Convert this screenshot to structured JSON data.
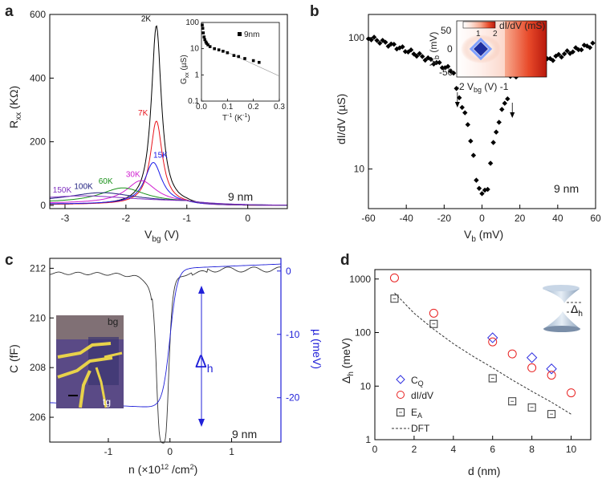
{
  "chart_data": [
    {
      "panel_label": "a",
      "type": "line",
      "xlabel": "V",
      "xlabel_sub": "bg",
      "xlabel_unit": " (V)",
      "ylabel": "R",
      "ylabel_sub": "xx",
      "ylabel_unit": " (KΩ)",
      "xlim": [
        -3.25,
        0.65
      ],
      "ylim": [
        -10,
        600
      ],
      "xticks": [
        -3,
        -2,
        -1,
        0
      ],
      "yticks": [
        0,
        200,
        400,
        600
      ],
      "annotation": "9 nm",
      "series": [
        {
          "name": "2K",
          "color": "#000000",
          "peak_x": -1.5,
          "peak_y": 565,
          "width": 0.1,
          "base": 2
        },
        {
          "name": "7K",
          "color": "#e8141c",
          "peak_x": -1.5,
          "peak_y": 265,
          "width": 0.12,
          "base": 3
        },
        {
          "name": "15K",
          "color": "#1a1ae8",
          "peak_x": -1.55,
          "peak_y": 135,
          "width": 0.17,
          "base": 4
        },
        {
          "name": "30K",
          "color": "#d020d0",
          "peak_x": -1.75,
          "peak_y": 78,
          "width": 0.3,
          "base": 6
        },
        {
          "name": "60K",
          "color": "#189018",
          "peak_x": -2.05,
          "peak_y": 55,
          "width": 0.45,
          "base": 8
        },
        {
          "name": "100K",
          "color": "#202080",
          "peak_x": -2.4,
          "peak_y": 40,
          "width": 0.7,
          "base": 9
        },
        {
          "name": "150K",
          "color": "#8030c0",
          "peak_x": -2.7,
          "peak_y": 30,
          "width": 1.0,
          "base": 10
        }
      ],
      "inset": {
        "xlabel": "T",
        "xlabel_sup": "-1",
        "xlabel_unit": " (K",
        "xlabel_unit_sup": "-1",
        "xlabel_close": ")",
        "ylabel": "G",
        "ylabel_sub": "xx",
        "ylabel_unit": " (µS)",
        "xlim": [
          0,
          0.3
        ],
        "ylog": [
          0.1,
          100
        ],
        "xticks": [
          0.0,
          0.1,
          0.2,
          0.3
        ],
        "yticks": [
          0.1,
          1,
          10,
          100
        ],
        "legend": "9nm",
        "x": [
          0.003,
          0.005,
          0.007,
          0.01,
          0.013,
          0.017,
          0.02,
          0.025,
          0.033,
          0.05,
          0.067,
          0.083,
          0.1,
          0.125,
          0.143,
          0.167,
          0.2,
          0.222
        ],
        "y": [
          80,
          60,
          40,
          28,
          22,
          18,
          16,
          14,
          12,
          10,
          9,
          8,
          7,
          5.5,
          5,
          4.2,
          3.5,
          3.0
        ]
      }
    },
    {
      "panel_label": "b",
      "type": "scatter",
      "xlabel": "V",
      "xlabel_sub": "b",
      "xlabel_unit": " (mV)",
      "ylabel": "dI/dV (µS)",
      "xlim": [
        -60,
        60
      ],
      "ylog": [
        5,
        150
      ],
      "xticks": [
        -60,
        -40,
        -20,
        0,
        20,
        40,
        60
      ],
      "yticks": [
        10,
        100
      ],
      "annotation": "9 nm",
      "arrows_x": [
        -13,
        16
      ],
      "inset": {
        "colorbar_label": "dI/dV (mS)",
        "colorbar_ticks": [
          "1",
          "2"
        ],
        "xlabel": "-2 V",
        "xlabel_sub": "bg",
        "xlabel_unit": " (V) -1",
        "ylabel": "V",
        "ylabel_sub": "b",
        "ylabel_unit": " (mV)",
        "yticks": [
          "50",
          "0",
          "-50"
        ]
      }
    },
    {
      "panel_label": "c",
      "type": "line",
      "xlabel": "n (×10",
      "xlabel_sup": "12",
      "xlabel_unit": " /cm",
      "xlabel_unit_sup": "2",
      "xlabel_close": ")",
      "ylabel": "C (fF)",
      "ylabel_right": "µ (meV)",
      "xlim": [
        -1.95,
        1.8
      ],
      "ylim": [
        205,
        212.4
      ],
      "y2lim": [
        -27,
        2
      ],
      "xticks": [
        -1,
        0,
        1
      ],
      "yticks": [
        206,
        208,
        210,
        212
      ],
      "y2ticks": [
        -20,
        -10,
        0
      ],
      "annotation": "9 nm",
      "gap_label": "Δ",
      "gap_sub": "h",
      "photo_labels": {
        "top": "bg",
        "bottom": "tg"
      },
      "series": [
        {
          "name": "C",
          "color": "#333333"
        },
        {
          "name": "µ",
          "color": "#2020d8"
        }
      ]
    },
    {
      "panel_label": "d",
      "type": "scatter",
      "xlabel": "d (nm)",
      "ylabel": "Δ",
      "ylabel_sub": "h",
      "ylabel_unit": " (meV)",
      "xlim": [
        0,
        11
      ],
      "ylog": [
        1,
        1500
      ],
      "xticks": [
        0,
        2,
        4,
        6,
        8,
        10
      ],
      "yticks": [
        1,
        10,
        100,
        1000
      ],
      "inset_label": "Δ",
      "inset_sub": "h",
      "series": [
        {
          "name": "C",
          "name_sub": "Q",
          "marker": "diamond",
          "color": "#3030e0",
          "x": [
            6,
            8,
            9
          ],
          "y": [
            80,
            34,
            21
          ]
        },
        {
          "name": "dI/dV",
          "marker": "circle",
          "color": "#e82020",
          "x": [
            1,
            3,
            6,
            7,
            8,
            9,
            10
          ],
          "y": [
            1050,
            230,
            67,
            40,
            22,
            16,
            7.5
          ]
        },
        {
          "name": "E",
          "name_sub": "A",
          "marker": "square",
          "color": "#333333",
          "x": [
            1,
            3,
            6,
            7,
            8,
            9
          ],
          "y": [
            430,
            145,
            14,
            5.2,
            4,
            3
          ]
        },
        {
          "name": "DFT",
          "marker": "dash",
          "color": "#333333",
          "x": [
            1,
            2,
            3,
            4,
            5,
            6,
            7,
            8,
            9,
            10
          ],
          "y": [
            550,
            230,
            115,
            62,
            36,
            22,
            13,
            8,
            5,
            3
          ]
        }
      ]
    }
  ]
}
